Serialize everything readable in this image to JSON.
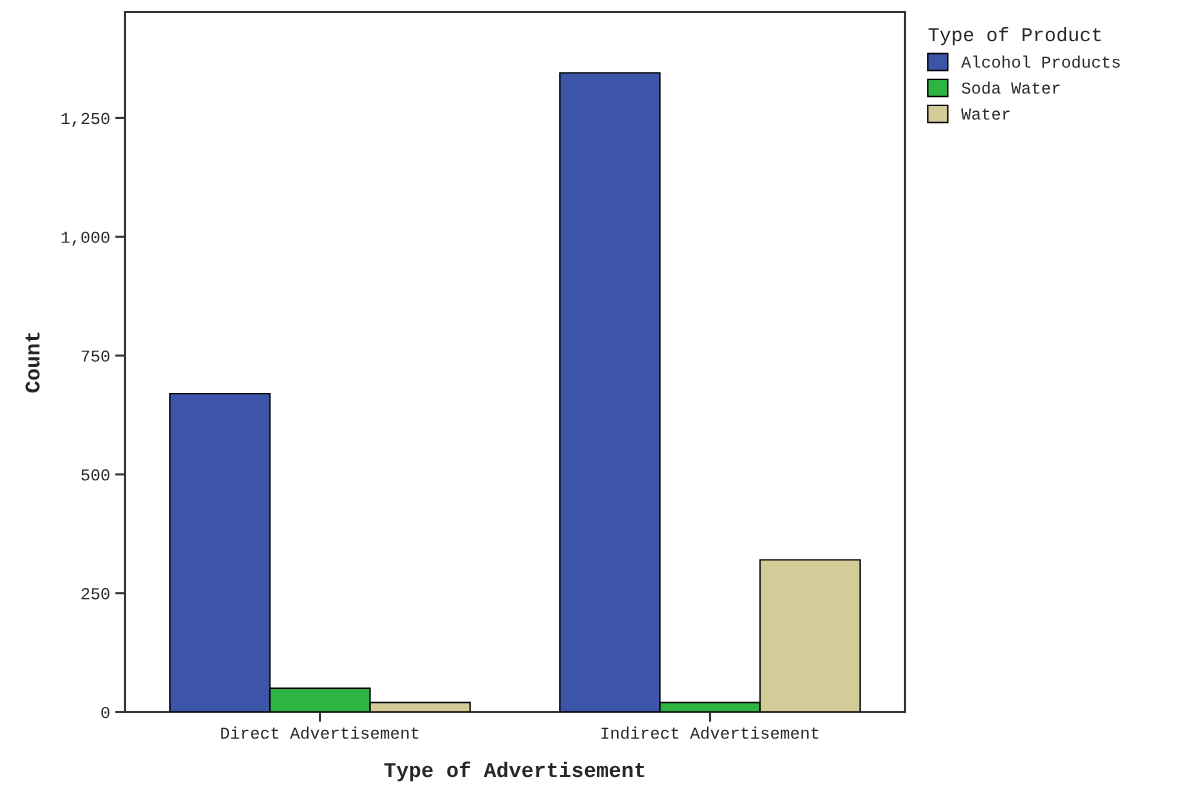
{
  "chart_data": {
    "type": "bar",
    "xlabel": "Type of Advertisement",
    "ylabel": "Count",
    "legend_title": "Type of Product",
    "categories": [
      "Direct Advertisement",
      "Indirect Advertisement"
    ],
    "series": [
      {
        "name": "Alcohol Products",
        "color": "#3d55a9",
        "values": [
          670,
          1345
        ]
      },
      {
        "name": "Soda Water",
        "color": "#2db443",
        "values": [
          50,
          20
        ]
      },
      {
        "name": "Water",
        "color": "#d3cc98",
        "values": [
          20,
          320
        ]
      }
    ],
    "ylim": [
      0,
      1473
    ],
    "yticks": [
      0,
      250,
      500,
      750,
      {
        "value": 1000,
        "label": "1,000"
      },
      {
        "value": 1250,
        "label": "1,250"
      }
    ],
    "grid": false,
    "legend": "right"
  }
}
